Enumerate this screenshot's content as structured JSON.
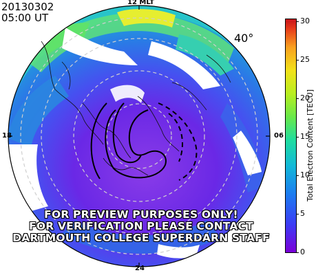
{
  "header": {
    "date": "20130302",
    "time": "05:00  UT",
    "latitude_label": "40°"
  },
  "mlt_labels": {
    "noon": "12 MLT",
    "dusk": "18",
    "dawn": "06",
    "midnight": "24"
  },
  "watermark": {
    "line1": "FOR PREVIEW PURPOSES ONLY!",
    "line2": "FOR VERIFICATION PLEASE CONTACT",
    "line3": "DARTMOUTH COLLEGE SUPERDARN STAFF"
  },
  "colorbar": {
    "title": "Total Electron Content [TECU]",
    "ticks": [
      "30",
      "25",
      "20",
      "15",
      "10",
      "5",
      "0"
    ],
    "range": [
      0,
      30
    ]
  }
}
